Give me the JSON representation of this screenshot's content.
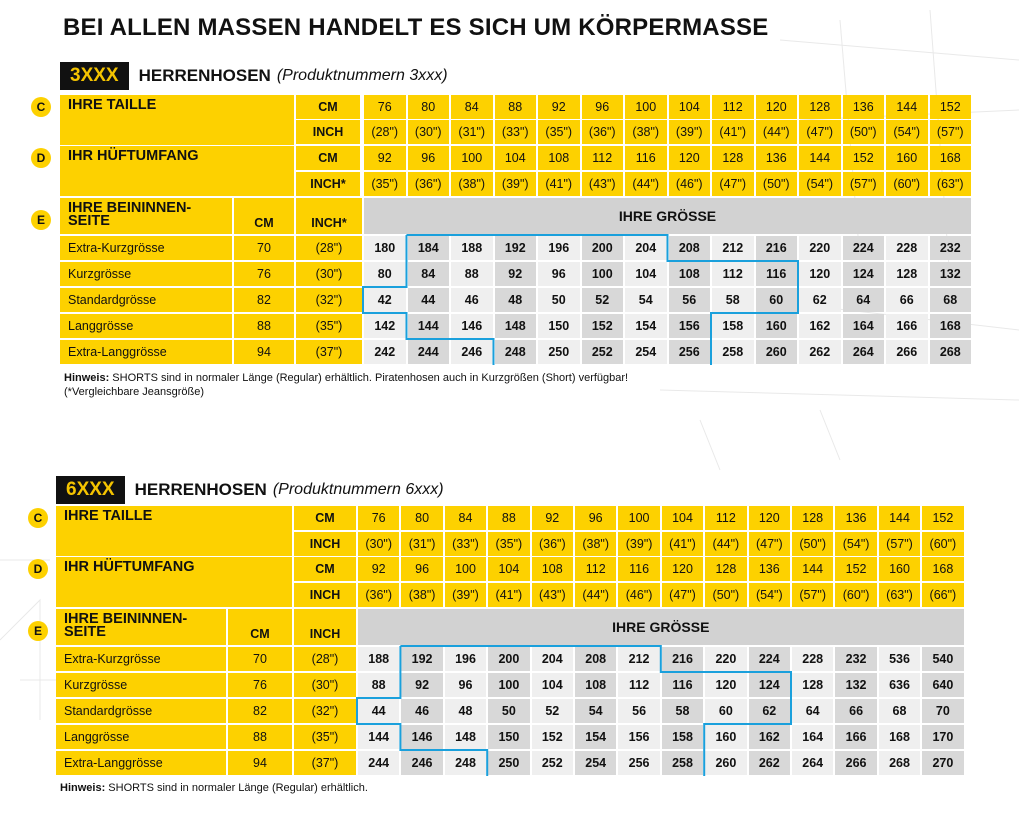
{
  "main_title": "BEI ALLEN MASSEN HANDELT ES SICH UM KÖRPERMASSE",
  "sections": [
    {
      "code": "3XXX",
      "title": "HERRENHOSEN",
      "subtitle": "(Produktnummern 3xxx)",
      "taille": {
        "letter": "C",
        "label": "IHRE TAILLE",
        "cm_unit": "CM",
        "inch_unit": "INCH",
        "cm": [
          "76",
          "80",
          "84",
          "88",
          "92",
          "96",
          "100",
          "104",
          "112",
          "120",
          "128",
          "136",
          "144",
          "152"
        ],
        "inch": [
          "(28\")",
          "(30\")",
          "(31\")",
          "(33\")",
          "(35\")",
          "(36\")",
          "(38\")",
          "(39\")",
          "(41\")",
          "(44\")",
          "(47\")",
          "(50\")",
          "(54\")",
          "(57\")"
        ]
      },
      "huefte": {
        "letter": "D",
        "label": "IHR HÜFTUMFANG",
        "cm_unit": "CM",
        "inch_unit": "INCH*",
        "cm": [
          "92",
          "96",
          "100",
          "104",
          "108",
          "112",
          "116",
          "120",
          "128",
          "136",
          "144",
          "152",
          "160",
          "168"
        ],
        "inch": [
          "(35\")",
          "(36\")",
          "(38\")",
          "(39\")",
          "(41\")",
          "(43\")",
          "(44\")",
          "(46\")",
          "(47\")",
          "(50\")",
          "(54\")",
          "(57\")",
          "(60\")",
          "(63\")"
        ]
      },
      "bein": {
        "letter": "E",
        "label_line1": "IHRE BEININNEN-",
        "label_line2": "SEITE",
        "cm_unit": "CM",
        "inch_unit": "INCH*",
        "size_header": "IHRE GRÖSSE",
        "rows": [
          {
            "name": "Extra-Kurzgrösse",
            "cm": "70",
            "inch": "(28\")",
            "sizes": [
              "180",
              "184",
              "188",
              "192",
              "196",
              "200",
              "204",
              "208",
              "212",
              "216",
              "220",
              "224",
              "228",
              "232"
            ]
          },
          {
            "name": "Kurzgrösse",
            "cm": "76",
            "inch": "(30\")",
            "sizes": [
              "80",
              "84",
              "88",
              "92",
              "96",
              "100",
              "104",
              "108",
              "112",
              "116",
              "120",
              "124",
              "128",
              "132"
            ]
          },
          {
            "name": "Standardgrösse",
            "cm": "82",
            "inch": "(32\")",
            "sizes": [
              "42",
              "44",
              "46",
              "48",
              "50",
              "52",
              "54",
              "56",
              "58",
              "60",
              "62",
              "64",
              "66",
              "68"
            ]
          },
          {
            "name": "Langgrösse",
            "cm": "88",
            "inch": "(35\")",
            "sizes": [
              "142",
              "144",
              "146",
              "148",
              "150",
              "152",
              "154",
              "156",
              "158",
              "160",
              "162",
              "164",
              "166",
              "168"
            ]
          },
          {
            "name": "Extra-Langgrösse",
            "cm": "94",
            "inch": "(37\")",
            "sizes": [
              "242",
              "244",
              "246",
              "248",
              "250",
              "252",
              "254",
              "256",
              "258",
              "260",
              "262",
              "264",
              "266",
              "268"
            ]
          }
        ]
      },
      "note_bold": "Hinweis:",
      "note_text": " SHORTS sind in normaler Länge (Regular) erhältlich. Piratenhosen auch in Kurzgrößen (Short) verfügbar!",
      "note_line2": "(*Vergleichbare Jeansgröße)"
    },
    {
      "code": "6XXX",
      "title": "HERRENHOSEN",
      "subtitle": "(Produktnummern 6xxx)",
      "taille": {
        "letter": "C",
        "label": "IHRE TAILLE",
        "cm_unit": "CM",
        "inch_unit": "INCH",
        "cm": [
          "76",
          "80",
          "84",
          "88",
          "92",
          "96",
          "100",
          "104",
          "112",
          "120",
          "128",
          "136",
          "144",
          "152"
        ],
        "inch": [
          "(30\")",
          "(31\")",
          "(33\")",
          "(35\")",
          "(36\")",
          "(38\")",
          "(39\")",
          "(41\")",
          "(44\")",
          "(47\")",
          "(50\")",
          "(54\")",
          "(57\")",
          "(60\")"
        ]
      },
      "huefte": {
        "letter": "D",
        "label": "IHR HÜFTUMFANG",
        "cm_unit": "CM",
        "inch_unit": "INCH",
        "cm": [
          "92",
          "96",
          "100",
          "104",
          "108",
          "112",
          "116",
          "120",
          "128",
          "136",
          "144",
          "152",
          "160",
          "168"
        ],
        "inch": [
          "(36\")",
          "(38\")",
          "(39\")",
          "(41\")",
          "(43\")",
          "(44\")",
          "(46\")",
          "(47\")",
          "(50\")",
          "(54\")",
          "(57\")",
          "(60\")",
          "(63\")",
          "(66\")"
        ]
      },
      "bein": {
        "letter": "E",
        "label_line1": "IHRE BEININNEN-",
        "label_line2": "SEITE",
        "cm_unit": "CM",
        "inch_unit": "INCH",
        "size_header": "IHRE GRÖSSE",
        "rows": [
          {
            "name": "Extra-Kurzgrösse",
            "cm": "70",
            "inch": "(28\")",
            "sizes": [
              "188",
              "192",
              "196",
              "200",
              "204",
              "208",
              "212",
              "216",
              "220",
              "224",
              "228",
              "232",
              "536",
              "540"
            ]
          },
          {
            "name": "Kurzgrösse",
            "cm": "76",
            "inch": "(30\")",
            "sizes": [
              "88",
              "92",
              "96",
              "100",
              "104",
              "108",
              "112",
              "116",
              "120",
              "124",
              "128",
              "132",
              "636",
              "640"
            ]
          },
          {
            "name": "Standardgrösse",
            "cm": "82",
            "inch": "(32\")",
            "sizes": [
              "44",
              "46",
              "48",
              "50",
              "52",
              "54",
              "56",
              "58",
              "60",
              "62",
              "64",
              "66",
              "68",
              "70"
            ]
          },
          {
            "name": "Langgrösse",
            "cm": "88",
            "inch": "(35\")",
            "sizes": [
              "144",
              "146",
              "148",
              "150",
              "152",
              "154",
              "156",
              "158",
              "160",
              "162",
              "164",
              "166",
              "168",
              "170"
            ]
          },
          {
            "name": "Extra-Langgrösse",
            "cm": "94",
            "inch": "(37\")",
            "sizes": [
              "244",
              "246",
              "248",
              "250",
              "252",
              "254",
              "256",
              "258",
              "260",
              "262",
              "264",
              "266",
              "268",
              "270"
            ]
          }
        ]
      },
      "note_bold": "Hinweis:",
      "note_text": " SHORTS sind in normaler Länge (Regular) erhältlich.",
      "note_line2": ""
    }
  ]
}
